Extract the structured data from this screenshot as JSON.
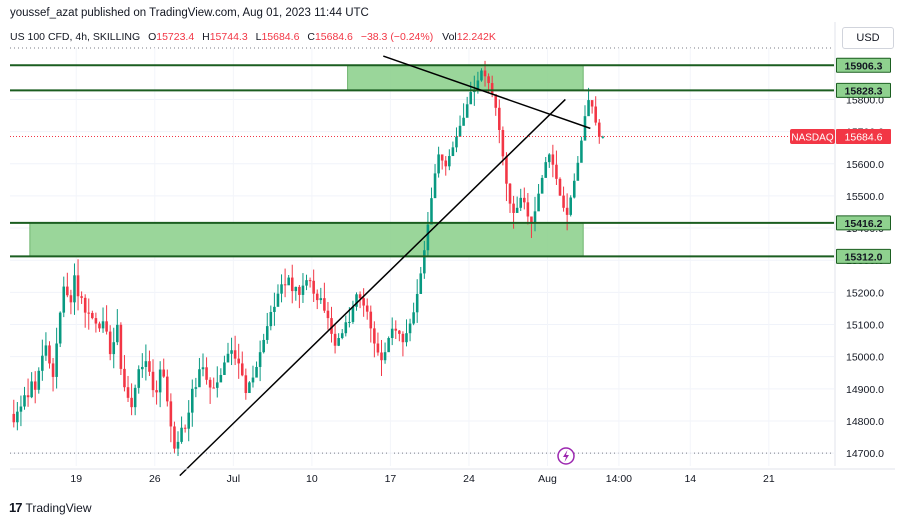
{
  "header": {
    "published": "youssef_azat published on TradingView.com, Aug 01, 2023 11:44 UTC"
  },
  "legend": {
    "symbol": "US 100 CFD, 4h, SKILLING",
    "o_label": "O",
    "o_value": "15723.4",
    "h_label": "H",
    "h_value": "15744.3",
    "l_label": "L",
    "l_value": "15684.6",
    "c_label": "C",
    "c_value": "15684.6",
    "change": "−38.3 (−0.24%)",
    "vol_label": "Vol",
    "vol_value": "12.242K"
  },
  "currency_button": "USD",
  "footer": {
    "brand": "TradingView",
    "mark": "17"
  },
  "colors": {
    "up": "#089981",
    "down": "#f23645",
    "zone_fill": "#8fd18f",
    "zone_edge": "#1b5e20",
    "trend": "#000000",
    "last_price": "#f23645",
    "event_icon": "#9c27b0"
  },
  "chart_data": {
    "type": "candlestick",
    "timeframe": "4h",
    "ylim": [
      14660,
      15960
    ],
    "price_ticks": [
      14700,
      14800,
      14900,
      15000,
      15100,
      15200,
      15300,
      15400,
      15500,
      15600,
      15700,
      15800
    ],
    "price_tick_labels": [
      "14700.0",
      "14800.0",
      "14900.0",
      "15000.0",
      "15100.0",
      "15200.0",
      "15300.0",
      "15400.0",
      "15500.0",
      "15600.0",
      "15700.0",
      "15800.0"
    ],
    "time_labels": [
      "19",
      "26",
      "Jul",
      "10",
      "17",
      "24",
      "Aug",
      "14:00",
      "14",
      "21"
    ],
    "level_labels": [
      {
        "price": 15906.3,
        "text": "15906.3"
      },
      {
        "price": 15828.3,
        "text": "15828.3"
      },
      {
        "price": 15416.2,
        "text": "15416.2"
      },
      {
        "price": 15312.0,
        "text": "15312.0"
      }
    ],
    "zones": [
      {
        "from_bar": 94,
        "to_bar": 160,
        "low": 15828.3,
        "high": 15906.3
      },
      {
        "from_bar": 5,
        "to_bar": 160,
        "low": 15312.0,
        "high": 15416.2
      }
    ],
    "last_price": {
      "label": "NASDAQ",
      "value": 15684.6
    },
    "trend_lines": [
      {
        "p1": {
          "bar": 47,
          "price": 14630
        },
        "p2": {
          "bar": 155,
          "price": 15800
        }
      },
      {
        "p1": {
          "bar": 104,
          "price": 15935
        },
        "p2": {
          "bar": 162,
          "price": 15710
        }
      }
    ],
    "candles": [
      [
        14822,
        14796,
        14866,
        14780
      ],
      [
        14796,
        14829,
        14859,
        14771
      ],
      [
        14829,
        14845,
        14879,
        14784
      ],
      [
        14845,
        14880,
        14906,
        14835
      ],
      [
        14880,
        14874,
        14932,
        14844
      ],
      [
        14874,
        14923,
        14952,
        14871
      ],
      [
        14923,
        14897,
        14955,
        14855
      ],
      [
        14897,
        14956,
        14967,
        14885
      ],
      [
        14956,
        15003,
        15053,
        14925
      ],
      [
        15003,
        15035,
        15076,
        14987
      ],
      [
        15035,
        14979,
        15048,
        14963
      ],
      [
        14979,
        14937,
        14996,
        14892
      ],
      [
        14937,
        15041,
        15090,
        14901
      ],
      [
        15041,
        15137,
        15141,
        15030
      ],
      [
        15137,
        15218,
        15249,
        15123
      ],
      [
        15218,
        15191,
        15261,
        15185
      ],
      [
        15191,
        15169,
        15208,
        15132
      ],
      [
        15169,
        15253,
        15290,
        15130
      ],
      [
        15253,
        15188,
        15303,
        15144
      ],
      [
        15188,
        15183,
        15203,
        15164
      ],
      [
        15183,
        15137,
        15194,
        15090
      ],
      [
        15137,
        15136,
        15181,
        15084
      ],
      [
        15136,
        15120,
        15143,
        15116
      ],
      [
        15120,
        15103,
        15137,
        15075
      ],
      [
        15103,
        15088,
        15109,
        15077
      ],
      [
        15088,
        15110,
        15153,
        15074
      ],
      [
        15110,
        15078,
        15160,
        15069
      ],
      [
        15078,
        15008,
        15098,
        14989
      ],
      [
        15008,
        15045,
        15090,
        14964
      ],
      [
        15045,
        15099,
        15148,
        15036
      ],
      [
        15099,
        14962,
        15107,
        14943
      ],
      [
        14962,
        14905,
        15005,
        14892
      ],
      [
        14905,
        14872,
        14940,
        14859
      ],
      [
        14872,
        14843,
        14917,
        14818
      ],
      [
        14843,
        14903,
        14913,
        14818
      ],
      [
        14903,
        14961,
        14973,
        14885
      ],
      [
        14961,
        14968,
        15011,
        14934
      ],
      [
        14968,
        14986,
        15038,
        14926
      ],
      [
        14986,
        14953,
        15019,
        14940
      ],
      [
        14953,
        14896,
        14992,
        14874
      ],
      [
        14896,
        14889,
        14926,
        14851
      ],
      [
        14889,
        14960,
        14986,
        14843
      ],
      [
        14960,
        14938,
        14994,
        14934
      ],
      [
        14938,
        14861,
        14960,
        14845
      ],
      [
        14861,
        14783,
        14886,
        14734
      ],
      [
        14783,
        14714,
        14798,
        14701
      ],
      [
        14714,
        14735,
        14768,
        14691
      ],
      [
        14735,
        14779,
        14814,
        14729
      ],
      [
        14779,
        14776,
        14789,
        14764
      ],
      [
        14776,
        14826,
        14865,
        14737
      ],
      [
        14826,
        14900,
        14929,
        14782
      ],
      [
        14900,
        14905,
        14934,
        14874
      ],
      [
        14905,
        14961,
        14996,
        14950
      ],
      [
        14961,
        14967,
        15010,
        14939
      ],
      [
        14967,
        14928,
        14998,
        14913
      ],
      [
        14928,
        14904,
        14936,
        14853
      ],
      [
        14904,
        14903,
        14935,
        14901
      ],
      [
        14903,
        14920,
        14970,
        14873
      ],
      [
        14920,
        14943,
        14964,
        14930
      ],
      [
        14943,
        14982,
        15003,
        14969
      ],
      [
        14982,
        15009,
        15043,
        14992
      ],
      [
        15009,
        15020,
        15059,
        14974
      ],
      [
        15020,
        14994,
        15065,
        14974
      ],
      [
        14994,
        14979,
        15040,
        14931
      ],
      [
        14979,
        14942,
        15016,
        14939
      ],
      [
        14942,
        14887,
        14963,
        14866
      ],
      [
        14887,
        14920,
        14924,
        14907
      ],
      [
        14920,
        14935,
        14972,
        14904
      ],
      [
        14935,
        14968,
        14985,
        14942
      ],
      [
        14968,
        15014,
        15050,
        14924
      ],
      [
        15014,
        15052,
        15071,
        15010
      ],
      [
        15052,
        15095,
        15136,
        15040
      ],
      [
        15095,
        15139,
        15159,
        15082
      ],
      [
        15139,
        15155,
        15199,
        15096
      ],
      [
        15155,
        15196,
        15225,
        15180
      ],
      [
        15196,
        15225,
        15256,
        15169
      ],
      [
        15225,
        15222,
        15274,
        15185
      ],
      [
        15222,
        15246,
        15254,
        15235
      ],
      [
        15246,
        15204,
        15286,
        15166
      ],
      [
        15204,
        15217,
        15218,
        15174
      ],
      [
        15217,
        15192,
        15223,
        15151
      ],
      [
        15192,
        15221,
        15260,
        15167
      ],
      [
        15221,
        15238,
        15255,
        15207
      ],
      [
        15238,
        15236,
        15246,
        15215
      ],
      [
        15236,
        15196,
        15271,
        15170
      ],
      [
        15196,
        15176,
        15209,
        15148
      ],
      [
        15176,
        15182,
        15214,
        15164
      ],
      [
        15182,
        15143,
        15230,
        15136
      ],
      [
        15143,
        15120,
        15170,
        15084
      ],
      [
        15120,
        15071,
        15155,
        15044
      ],
      [
        15071,
        15034,
        15100,
        15010
      ],
      [
        15034,
        15058,
        15073,
        15033
      ],
      [
        15058,
        15073,
        15086,
        15054
      ],
      [
        15073,
        15107,
        15128,
        15063
      ],
      [
        15107,
        15108,
        15154,
        15091
      ],
      [
        15108,
        15155,
        15174,
        15102
      ],
      [
        15155,
        15194,
        15200,
        15143
      ],
      [
        15194,
        15182,
        15203,
        15151
      ],
      [
        15182,
        15159,
        15213,
        15124
      ],
      [
        15159,
        15140,
        15181,
        15115
      ],
      [
        15140,
        15088,
        15159,
        15044
      ],
      [
        15088,
        15041,
        15110,
        14998
      ],
      [
        15041,
        15013,
        15075,
        15003
      ],
      [
        15013,
        14989,
        15052,
        14940
      ],
      [
        14989,
        15014,
        15044,
        14978
      ],
      [
        15014,
        15058,
        15063,
        15031
      ],
      [
        15058,
        15087,
        15122,
        15036
      ],
      [
        15087,
        15081,
        15113,
        15055
      ],
      [
        15081,
        15071,
        15083,
        15048
      ],
      [
        15071,
        15045,
        15079,
        15001
      ],
      [
        15045,
        15073,
        15116,
        15032
      ],
      [
        15073,
        15103,
        15118,
        15048
      ],
      [
        15103,
        15138,
        15168,
        15098
      ],
      [
        15138,
        15195,
        15241,
        15105
      ],
      [
        15195,
        15259,
        15279,
        15234
      ],
      [
        15259,
        15331,
        15360,
        15242
      ],
      [
        15331,
        15411,
        15450,
        15312
      ],
      [
        15411,
        15493,
        15526,
        15454
      ],
      [
        15493,
        15570,
        15599,
        15509
      ],
      [
        15570,
        15629,
        15653,
        15557
      ],
      [
        15629,
        15610,
        15626,
        15582
      ],
      [
        15610,
        15592,
        15624,
        15563
      ],
      [
        15592,
        15624,
        15645,
        15580
      ],
      [
        15624,
        15651,
        15669,
        15632
      ],
      [
        15651,
        15684,
        15713,
        15636
      ],
      [
        15684,
        15718,
        15750,
        15704
      ],
      [
        15718,
        15743,
        15788,
        15726
      ],
      [
        15743,
        15785,
        15808,
        15763
      ],
      [
        15785,
        15823,
        15855,
        15811
      ],
      [
        15823,
        15830,
        15874,
        15780
      ],
      [
        15830,
        15859,
        15886,
        15818
      ],
      [
        15859,
        15890,
        15897,
        15855
      ],
      [
        15890,
        15872,
        15920,
        15840
      ],
      [
        15872,
        15851,
        15881,
        15822
      ],
      [
        15851,
        15816,
        15874,
        15807
      ],
      [
        15816,
        15774,
        15816,
        15749
      ],
      [
        15774,
        15705,
        15800,
        15664
      ],
      [
        15705,
        15623,
        15716,
        15595
      ],
      [
        15623,
        15538,
        15636,
        15484
      ],
      [
        15538,
        15476,
        15540,
        15447
      ],
      [
        15476,
        15447,
        15500,
        15398
      ],
      [
        15447,
        15463,
        15498,
        15460
      ],
      [
        15463,
        15494,
        15522,
        15453
      ],
      [
        15494,
        15480,
        15526,
        15458
      ],
      [
        15480,
        15436,
        15509,
        15411
      ],
      [
        15436,
        15417,
        15436,
        15369
      ],
      [
        15417,
        15452,
        15497,
        15390
      ],
      [
        15452,
        15507,
        15537,
        15489
      ],
      [
        15507,
        15556,
        15565,
        15515
      ],
      [
        15556,
        15605,
        15621,
        15578
      ],
      [
        15605,
        15629,
        15633,
        15587
      ],
      [
        15629,
        15597,
        15659,
        15558
      ],
      [
        15597,
        15553,
        15641,
        15534
      ],
      [
        15553,
        15501,
        15558,
        15500
      ],
      [
        15501,
        15463,
        15529,
        15451
      ],
      [
        15463,
        15441,
        15508,
        15393
      ],
      [
        15441,
        15495,
        15502,
        15436
      ],
      [
        15495,
        15547,
        15570,
        15492
      ],
      [
        15547,
        15603,
        15624,
        15559
      ],
      [
        15603,
        15672,
        15684,
        15637
      ],
      [
        15672,
        15748,
        15782,
        15710
      ],
      [
        15748,
        15798,
        15836,
        15750
      ],
      [
        15798,
        15778,
        15793,
        15756
      ],
      [
        15778,
        15728,
        15810,
        15719
      ],
      [
        15728,
        15684,
        15739,
        15662
      ],
      [
        15684,
        15684,
        15687,
        15678
      ]
    ]
  }
}
